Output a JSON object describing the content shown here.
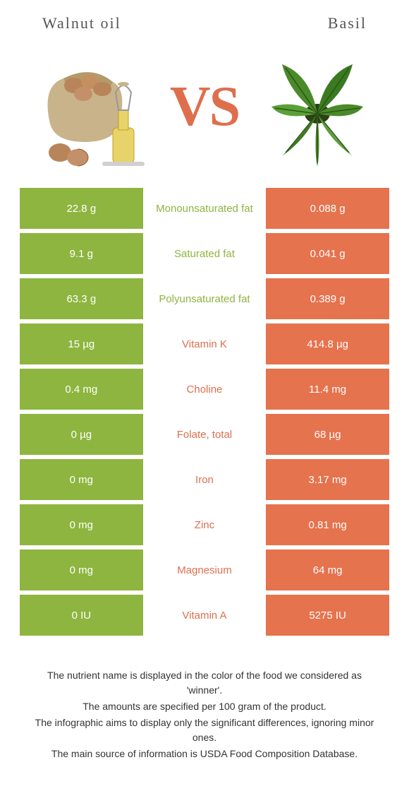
{
  "header": {
    "left_title": "Walnut oil",
    "right_title": "Basil"
  },
  "hero": {
    "vs_text": "VS"
  },
  "colors": {
    "left_bg": "#8eb53f",
    "right_bg": "#e5734e",
    "left_text": "#8eb53f",
    "right_text": "#de6f4d",
    "page_bg": "#ffffff"
  },
  "typography": {
    "header_font": "Times New Roman, serif",
    "header_size_pt": 16,
    "vs_size_pt": 60,
    "cell_size_pt": 11,
    "footer_size_pt": 10
  },
  "rows": [
    {
      "left": "22.8 g",
      "label": "Monounsaturated fat",
      "right": "0.088 g",
      "winner": "left"
    },
    {
      "left": "9.1 g",
      "label": "Saturated fat",
      "right": "0.041 g",
      "winner": "left"
    },
    {
      "left": "63.3 g",
      "label": "Polyunsaturated fat",
      "right": "0.389 g",
      "winner": "left"
    },
    {
      "left": "15 µg",
      "label": "Vitamin K",
      "right": "414.8 µg",
      "winner": "right"
    },
    {
      "left": "0.4 mg",
      "label": "Choline",
      "right": "11.4 mg",
      "winner": "right"
    },
    {
      "left": "0 µg",
      "label": "Folate, total",
      "right": "68 µg",
      "winner": "right"
    },
    {
      "left": "0 mg",
      "label": "Iron",
      "right": "3.17 mg",
      "winner": "right"
    },
    {
      "left": "0 mg",
      "label": "Zinc",
      "right": "0.81 mg",
      "winner": "right"
    },
    {
      "left": "0 mg",
      "label": "Magnesium",
      "right": "64 mg",
      "winner": "right"
    },
    {
      "left": "0 IU",
      "label": "Vitamin A",
      "right": "5275 IU",
      "winner": "right"
    }
  ],
  "footer": {
    "line1": "The nutrient name is displayed in the color of the food we considered as 'winner'.",
    "line2": "The amounts are specified per 100 gram of the product.",
    "line3": "The infographic aims to display only the significant differences, ignoring minor ones.",
    "line4": "The main source of information is USDA Food Composition Database."
  }
}
